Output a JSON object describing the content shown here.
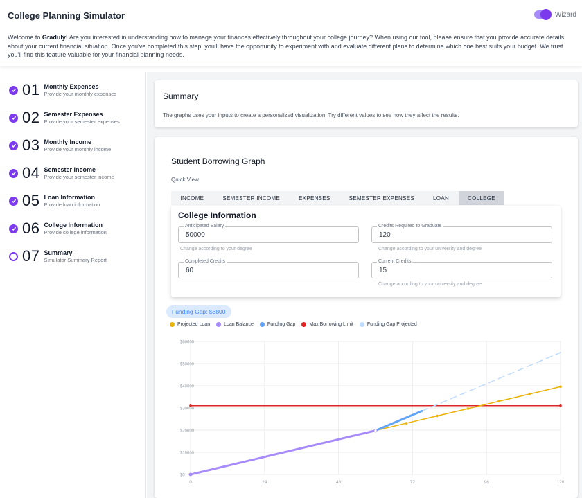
{
  "header": {
    "title": "College Planning Simulator",
    "wizard_label": "Wizard",
    "welcome_prefix": "Welcome to ",
    "brand": "Gradulý!",
    "welcome_body": " Are you interested in understanding how to manage your finances effectively throughout your college journey? When using our tool, please ensure that you provide accurate details about your current financial situation. Once you've completed this step, you'll have the opportunity to experiment with and evaluate different plans to determine which one best suits your budget. We trust you'll find this feature valuable for your financial planning needs."
  },
  "steps": [
    {
      "num": "01",
      "title": "Monthly Expenses",
      "sub": "Provide your monthly expenses",
      "done": true
    },
    {
      "num": "02",
      "title": "Semester Expenses",
      "sub": "Provide your semester expenses",
      "done": true
    },
    {
      "num": "03",
      "title": "Monthly Income",
      "sub": "Provide your monthly income",
      "done": true
    },
    {
      "num": "04",
      "title": "Semester Income",
      "sub": "Provide your semester income",
      "done": true
    },
    {
      "num": "05",
      "title": "Loan Information",
      "sub": "Provide loan information",
      "done": true
    },
    {
      "num": "06",
      "title": "College Information",
      "sub": "Provide college information",
      "done": true
    },
    {
      "num": "07",
      "title": "Summary",
      "sub": "Simulator Summary Report",
      "done": false
    }
  ],
  "summary": {
    "title": "Summary",
    "description": "The graphs uses your inputs to create a personalized visualization. Try different values to see how they affect the results."
  },
  "graph": {
    "title": "Student Borrowing Graph",
    "quick_view": "Quick View",
    "tabs": [
      "INCOME",
      "SEMESTER INCOME",
      "EXPENSES",
      "SEMESTER EXPENSES",
      "LOAN",
      "COLLEGE"
    ],
    "active_tab": "COLLEGE"
  },
  "college": {
    "title": "College Information",
    "anticipated_salary": {
      "label": "Anticipated Salary",
      "value": "50000",
      "helper": "Change according to your degree"
    },
    "credits_required": {
      "label": "Credits Required to Graduate",
      "value": "120",
      "helper": "Change according to your university and degree"
    },
    "completed_credits": {
      "label": "Completed Credits",
      "value": "60"
    },
    "current_credits": {
      "label": "Current Credits",
      "value": "15",
      "helper": "Change according to your university and degree"
    }
  },
  "funding_gap_badge": "Funding Gap: $8800",
  "colors": {
    "projected_loan": "#eab308",
    "loan_balance": "#a78bfa",
    "funding_gap": "#60a5fa",
    "max_borrowing": "#dc2626",
    "funding_gap_projected": "#bfdbfe",
    "accent": "#7c3aed"
  },
  "chart_data": {
    "type": "line",
    "title": "",
    "xlabel": "",
    "ylabel": "",
    "xlim": [
      0,
      120
    ],
    "ylim": [
      0,
      60000
    ],
    "x_ticks": [
      "0",
      "24",
      "48",
      "72",
      "96",
      "120"
    ],
    "y_ticks": [
      "$0",
      "$10000",
      "$20000",
      "$30000",
      "$40000",
      "$50000",
      "$60000"
    ],
    "legend": [
      "Projected Loan",
      "Loan Balance",
      "Funding Gap",
      "Max Borrowing Limit",
      "Funding Gap Projected"
    ],
    "series": [
      {
        "name": "Loan Balance",
        "color": "#a78bfa",
        "dashed": false,
        "points": [
          [
            0,
            0
          ],
          [
            60,
            19800
          ]
        ]
      },
      {
        "name": "Funding Gap",
        "color": "#60a5fa",
        "dashed": false,
        "points": [
          [
            60,
            19800
          ],
          [
            75,
            28600
          ]
        ]
      },
      {
        "name": "Projected Loan",
        "color": "#eab308",
        "dashed": false,
        "points": [
          [
            60,
            19800
          ],
          [
            70,
            23100
          ],
          [
            80,
            26400
          ],
          [
            90,
            29700
          ],
          [
            100,
            33000
          ],
          [
            110,
            36300
          ],
          [
            120,
            39600
          ]
        ]
      },
      {
        "name": "Max Borrowing Limit",
        "color": "#dc2626",
        "dashed": false,
        "points": [
          [
            0,
            31000
          ],
          [
            120,
            31000
          ]
        ]
      },
      {
        "name": "Funding Gap Projected",
        "color": "#bfdbfe",
        "dashed": true,
        "points": [
          [
            75,
            28600
          ],
          [
            120,
            55000
          ]
        ]
      }
    ]
  }
}
